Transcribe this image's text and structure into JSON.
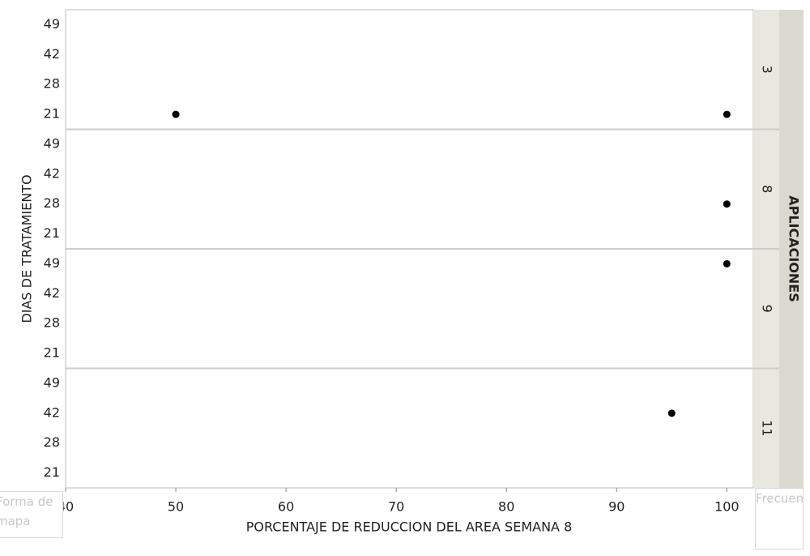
{
  "chart_data": {
    "type": "scatter",
    "x_label": "PORCENTAJE DE REDUCCION DEL AREA SEMANA 8",
    "y_label": "DIAS DE TRATAMIENTO",
    "facet_label": "APLICACIONES",
    "xlim": [
      40,
      102.4
    ],
    "xticks": [
      40,
      50,
      60,
      70,
      80,
      90,
      100
    ],
    "y_categories": [
      21,
      28,
      42,
      49
    ],
    "color": "#000000",
    "facets": [
      {
        "label": "3",
        "x": [
          50,
          100
        ],
        "y": [
          21,
          21
        ]
      },
      {
        "label": "8",
        "x": [
          100
        ],
        "y": [
          28
        ]
      },
      {
        "label": "9",
        "x": [
          100
        ],
        "y": [
          49
        ]
      },
      {
        "label": "11",
        "x": [
          95
        ],
        "y": [
          42
        ]
      }
    ]
  },
  "ui": {
    "left_control": "Forma de mapa",
    "right_control": "Frecuencia"
  }
}
